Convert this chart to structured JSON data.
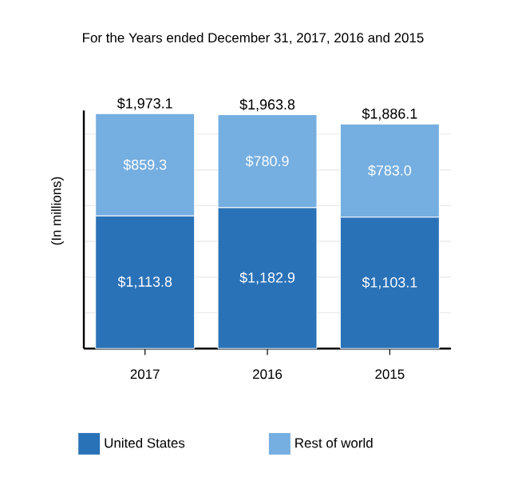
{
  "chart_data": {
    "type": "bar",
    "stacked": true,
    "title": "For the Years ended December 31, 2017, 2016 and 2015",
    "ylabel": "(In millions)",
    "categories": [
      "2017",
      "2016",
      "2015"
    ],
    "series": [
      {
        "name": "United States",
        "color": "#2a72b8",
        "values": [
          1113.8,
          1182.9,
          1103.1
        ],
        "value_labels": [
          "$1,113.8",
          "$1,182.9",
          "$1,103.1"
        ]
      },
      {
        "name": "Rest of world",
        "color": "#75aee0",
        "values": [
          859.3,
          780.9,
          783.0
        ],
        "value_labels": [
          "$859.3",
          "$780.9",
          "$783.0"
        ]
      }
    ],
    "totals": [
      "$1,973.1",
      "$1,963.8",
      "$1,886.1"
    ],
    "ylim": [
      0,
      2000
    ],
    "yticks": [
      {
        "value": 300,
        "label": null
      },
      {
        "value": 600,
        "label": null
      },
      {
        "value": 900,
        "label": null
      },
      {
        "value": 1200,
        "label": null
      },
      {
        "value": 1500,
        "label": null
      },
      {
        "value": 1800,
        "label": null
      }
    ],
    "grid": "y",
    "tick_labels": "x",
    "legend": "bottom"
  }
}
